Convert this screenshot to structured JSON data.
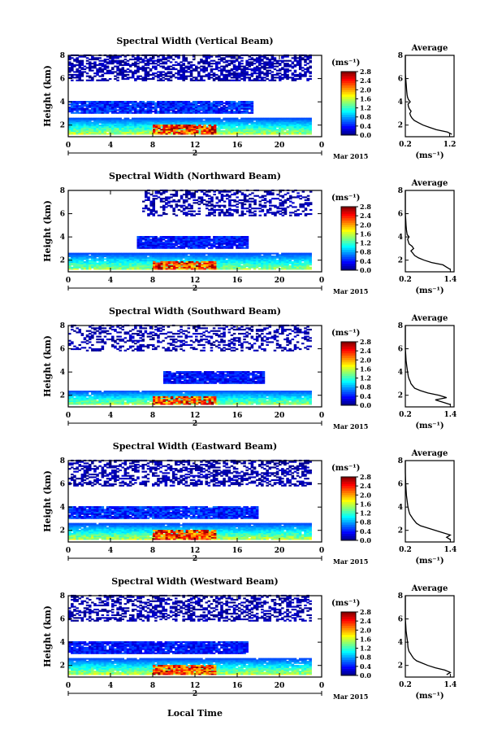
{
  "chart_data": [
    {
      "type": "heatmap",
      "title": "Spectral Width (Vertical Beam)",
      "ylabel": "Height (km)",
      "ylim": [
        1,
        8
      ],
      "yticks": [
        "2",
        "4",
        "6",
        "8"
      ],
      "xlim": [
        0,
        24
      ],
      "xticks": [
        "0",
        "4",
        "8",
        "12",
        "16",
        "20",
        "0"
      ],
      "day_label": "2",
      "date_label": "Mar 2015",
      "colorbar": {
        "unit": "(ms⁻¹)",
        "min": 0,
        "max": 2.8,
        "ticks": [
          "0.0",
          "0.4",
          "0.8",
          "1.2",
          "1.6",
          "2.0",
          "2.4",
          "2.8"
        ]
      },
      "average": {
        "title": "Average",
        "xlabel": "(ms⁻¹)",
        "xticks": [
          "0.2",
          "1.2"
        ],
        "xlim": [
          0.2,
          1.3
        ],
        "ylim": [
          1,
          8
        ],
        "yticks": [
          "2",
          "4",
          "6",
          "8"
        ],
        "profile": [
          [
            1.2,
            1.25
          ],
          [
            1.4,
            1.15
          ],
          [
            1.6,
            0.9
          ],
          [
            1.8,
            0.75
          ],
          [
            2.0,
            0.6
          ],
          [
            2.2,
            0.5
          ],
          [
            2.4,
            0.4
          ],
          [
            2.6,
            0.35
          ],
          [
            2.8,
            0.32
          ],
          [
            3.0,
            0.3
          ],
          [
            3.2,
            0.33
          ],
          [
            3.4,
            0.29
          ],
          [
            3.6,
            0.27
          ],
          [
            3.8,
            0.26
          ],
          [
            4.0,
            0.31
          ],
          [
            4.2,
            0.27
          ],
          [
            4.4,
            0.25
          ],
          [
            4.6,
            0.24
          ],
          [
            5.0,
            0.23
          ],
          [
            5.5,
            0.22
          ],
          [
            6.0,
            0.21
          ],
          [
            6.5,
            0.2
          ],
          [
            7.0,
            0.2
          ],
          [
            7.5,
            0.2
          ],
          [
            8.0,
            0.2
          ]
        ]
      },
      "layers": [
        {
          "name": "upper sparse",
          "t0": 0,
          "t1": 23,
          "h0": 5.8,
          "h1": 8,
          "v0": 0.0,
          "v1": 0.25,
          "density": 0.55
        },
        {
          "name": "middle layer",
          "t0": 0,
          "t1": 17.5,
          "h0": 3.0,
          "h1": 4.0,
          "v0": 0.2,
          "v1": 0.7,
          "density": 0.95
        },
        {
          "name": "lower layer",
          "t0": 0,
          "t1": 23,
          "h0": 1.2,
          "h1": 2.6,
          "v0": 0.5,
          "v1": 1.8,
          "density": 0.97
        },
        {
          "name": "peak",
          "t0": 8,
          "t1": 14,
          "h0": 1.2,
          "h1": 2.0,
          "v0": 1.8,
          "v1": 2.8,
          "density": 0.9
        }
      ]
    },
    {
      "type": "heatmap",
      "title": "Spectral Width (Northward Beam)",
      "ylabel": "Height (km)",
      "ylim": [
        1,
        8
      ],
      "yticks": [
        "2",
        "4",
        "6",
        "8"
      ],
      "xlim": [
        0,
        24
      ],
      "xticks": [
        "0",
        "4",
        "8",
        "12",
        "16",
        "20",
        "0"
      ],
      "day_label": "2",
      "date_label": "Mar 2015",
      "colorbar": {
        "unit": "(ms⁻¹)",
        "min": 0,
        "max": 2.8,
        "ticks": [
          "0.0",
          "0.4",
          "0.8",
          "1.2",
          "1.6",
          "2.0",
          "2.4",
          "2.8"
        ]
      },
      "average": {
        "title": "Average",
        "xlabel": "(ms⁻¹)",
        "xticks": [
          "0.2",
          "1.4"
        ],
        "xlim": [
          0.2,
          1.5
        ],
        "ylim": [
          1,
          8
        ],
        "yticks": [
          "2",
          "4",
          "6",
          "8"
        ],
        "profile": [
          [
            1.2,
            1.4
          ],
          [
            1.4,
            1.3
          ],
          [
            1.6,
            1.2
          ],
          [
            1.8,
            0.9
          ],
          [
            2.0,
            0.7
          ],
          [
            2.2,
            0.55
          ],
          [
            2.4,
            0.45
          ],
          [
            2.6,
            0.4
          ],
          [
            2.8,
            0.35
          ],
          [
            3.0,
            0.42
          ],
          [
            3.2,
            0.38
          ],
          [
            3.4,
            0.3
          ],
          [
            3.6,
            0.28
          ],
          [
            3.8,
            0.26
          ],
          [
            4.0,
            0.3
          ],
          [
            4.2,
            0.25
          ],
          [
            4.6,
            0.23
          ],
          [
            5.0,
            0.22
          ],
          [
            5.5,
            0.21
          ],
          [
            6.0,
            0.2
          ],
          [
            7.0,
            0.2
          ],
          [
            8.0,
            0.2
          ]
        ]
      },
      "layers": [
        {
          "name": "upper sparse",
          "t0": 7,
          "t1": 23,
          "h0": 5.8,
          "h1": 8,
          "v0": 0.0,
          "v1": 0.25,
          "density": 0.4
        },
        {
          "name": "middle layer",
          "t0": 6.5,
          "t1": 17,
          "h0": 3.0,
          "h1": 4.0,
          "v0": 0.2,
          "v1": 0.6,
          "density": 0.95
        },
        {
          "name": "lower layer",
          "t0": 0,
          "t1": 23,
          "h0": 1.2,
          "h1": 2.6,
          "v0": 0.5,
          "v1": 1.7,
          "density": 0.97
        },
        {
          "name": "peak",
          "t0": 8,
          "t1": 14,
          "h0": 1.2,
          "h1": 1.9,
          "v0": 1.8,
          "v1": 2.8,
          "density": 0.85
        }
      ]
    },
    {
      "type": "heatmap",
      "title": "Spectral Width (Southward Beam)",
      "ylabel": "Height (km)",
      "ylim": [
        1,
        8
      ],
      "yticks": [
        "2",
        "4",
        "6",
        "8"
      ],
      "xlim": [
        0,
        24
      ],
      "xticks": [
        "0",
        "4",
        "8",
        "12",
        "16",
        "20",
        "0"
      ],
      "day_label": "2",
      "date_label": "Mar 2015",
      "colorbar": {
        "unit": "(ms⁻¹)",
        "min": 0,
        "max": 2.8,
        "ticks": [
          "0.0",
          "0.4",
          "0.8",
          "1.2",
          "1.6",
          "2.0",
          "2.4",
          "2.8"
        ]
      },
      "average": {
        "title": "Average",
        "xlabel": "(ms⁻¹)",
        "xticks": [
          "0.2",
          "1.4"
        ],
        "xlim": [
          0.2,
          1.5
        ],
        "ylim": [
          1,
          8
        ],
        "yticks": [
          "2",
          "4",
          "6",
          "8"
        ],
        "profile": [
          [
            1.2,
            1.4
          ],
          [
            1.4,
            1.2
          ],
          [
            1.6,
            1.0
          ],
          [
            1.8,
            1.3
          ],
          [
            2.0,
            1.1
          ],
          [
            2.2,
            0.8
          ],
          [
            2.4,
            0.6
          ],
          [
            2.6,
            0.45
          ],
          [
            2.8,
            0.4
          ],
          [
            3.0,
            0.35
          ],
          [
            3.2,
            0.33
          ],
          [
            3.4,
            0.3
          ],
          [
            3.6,
            0.28
          ],
          [
            4.0,
            0.26
          ],
          [
            4.5,
            0.24
          ],
          [
            5.0,
            0.22
          ],
          [
            5.5,
            0.21
          ],
          [
            6.0,
            0.2
          ],
          [
            7.0,
            0.2
          ],
          [
            8.0,
            0.2
          ]
        ]
      },
      "layers": [
        {
          "name": "upper sparse",
          "t0": 0,
          "t1": 23,
          "h0": 5.8,
          "h1": 8,
          "v0": 0.0,
          "v1": 0.25,
          "density": 0.35
        },
        {
          "name": "middle layer",
          "t0": 9,
          "t1": 18.5,
          "h0": 3.0,
          "h1": 4.0,
          "v0": 0.2,
          "v1": 0.6,
          "density": 0.95
        },
        {
          "name": "lower layer",
          "t0": 0,
          "t1": 23,
          "h0": 1.2,
          "h1": 2.4,
          "v0": 0.5,
          "v1": 1.7,
          "density": 0.97
        },
        {
          "name": "peak",
          "t0": 8,
          "t1": 14,
          "h0": 1.2,
          "h1": 1.9,
          "v0": 1.8,
          "v1": 2.8,
          "density": 0.85
        }
      ]
    },
    {
      "type": "heatmap",
      "title": "Spectral Width (Eastward Beam)",
      "ylabel": "Height (km)",
      "ylim": [
        1,
        8
      ],
      "yticks": [
        "2",
        "4",
        "6",
        "8"
      ],
      "xlim": [
        0,
        24
      ],
      "xticks": [
        "0",
        "4",
        "8",
        "12",
        "16",
        "20",
        "0"
      ],
      "day_label": "2",
      "date_label": "Mar 2015",
      "colorbar": {
        "unit": "(ms⁻¹)",
        "min": 0,
        "max": 2.8,
        "ticks": [
          "0.0",
          "0.4",
          "0.8",
          "1.2",
          "1.6",
          "2.0",
          "2.4",
          "2.8"
        ]
      },
      "average": {
        "title": "Average",
        "xlabel": "(ms⁻¹)",
        "xticks": [
          "0.2",
          "1.4"
        ],
        "xlim": [
          0.2,
          1.5
        ],
        "ylim": [
          1,
          8
        ],
        "yticks": [
          "2",
          "4",
          "6",
          "8"
        ],
        "profile": [
          [
            1.2,
            1.4
          ],
          [
            1.4,
            1.3
          ],
          [
            1.6,
            1.4
          ],
          [
            1.8,
            1.2
          ],
          [
            2.0,
            1.0
          ],
          [
            2.2,
            0.8
          ],
          [
            2.4,
            0.6
          ],
          [
            2.6,
            0.5
          ],
          [
            2.8,
            0.45
          ],
          [
            3.0,
            0.4
          ],
          [
            3.2,
            0.36
          ],
          [
            3.4,
            0.32
          ],
          [
            3.6,
            0.3
          ],
          [
            4.0,
            0.27
          ],
          [
            4.5,
            0.25
          ],
          [
            5.0,
            0.23
          ],
          [
            5.5,
            0.22
          ],
          [
            6.0,
            0.21
          ],
          [
            7.0,
            0.2
          ],
          [
            8.0,
            0.2
          ]
        ]
      },
      "layers": [
        {
          "name": "upper sparse",
          "t0": 0,
          "t1": 23,
          "h0": 5.8,
          "h1": 8,
          "v0": 0.0,
          "v1": 0.25,
          "density": 0.5
        },
        {
          "name": "middle layer",
          "t0": 0,
          "t1": 18,
          "h0": 3.0,
          "h1": 4.0,
          "v0": 0.2,
          "v1": 0.7,
          "density": 0.95
        },
        {
          "name": "lower layer",
          "t0": 0,
          "t1": 23,
          "h0": 1.2,
          "h1": 2.6,
          "v0": 0.5,
          "v1": 1.8,
          "density": 0.97
        },
        {
          "name": "peak",
          "t0": 8,
          "t1": 14,
          "h0": 1.2,
          "h1": 2.0,
          "v0": 1.8,
          "v1": 2.8,
          "density": 0.9
        }
      ]
    },
    {
      "type": "heatmap",
      "title": "Spectral Width (Westward Beam)",
      "ylabel": "Height (km)",
      "ylim": [
        1,
        8
      ],
      "yticks": [
        "2",
        "4",
        "6",
        "8"
      ],
      "xlim": [
        0,
        24
      ],
      "xticks": [
        "0",
        "4",
        "8",
        "12",
        "16",
        "20",
        "0"
      ],
      "day_label": "2",
      "date_label": "Mar 2015",
      "colorbar": {
        "unit": "(ms⁻¹)",
        "min": 0,
        "max": 2.8,
        "ticks": [
          "0.0",
          "0.4",
          "0.8",
          "1.2",
          "1.6",
          "2.0",
          "2.4",
          "2.8"
        ]
      },
      "average": {
        "title": "Average",
        "xlabel": "(ms⁻¹)",
        "xticks": [
          "0.2",
          "1.4"
        ],
        "xlim": [
          0.2,
          1.5
        ],
        "ylim": [
          1,
          8
        ],
        "yticks": [
          "2",
          "4",
          "6",
          "8"
        ],
        "profile": [
          [
            1.2,
            1.3
          ],
          [
            1.4,
            1.4
          ],
          [
            1.6,
            1.25
          ],
          [
            1.8,
            1.0
          ],
          [
            2.0,
            0.8
          ],
          [
            2.2,
            0.65
          ],
          [
            2.4,
            0.5
          ],
          [
            2.6,
            0.42
          ],
          [
            2.8,
            0.38
          ],
          [
            3.0,
            0.34
          ],
          [
            3.2,
            0.3
          ],
          [
            3.4,
            0.28
          ],
          [
            3.6,
            0.27
          ],
          [
            4.0,
            0.26
          ],
          [
            4.5,
            0.24
          ],
          [
            5.0,
            0.22
          ],
          [
            5.5,
            0.21
          ],
          [
            6.0,
            0.2
          ],
          [
            7.0,
            0.2
          ],
          [
            8.0,
            0.2
          ]
        ]
      },
      "layers": [
        {
          "name": "upper sparse",
          "t0": 0,
          "t1": 23,
          "h0": 5.8,
          "h1": 8,
          "v0": 0.0,
          "v1": 0.25,
          "density": 0.45
        },
        {
          "name": "middle layer",
          "t0": 0,
          "t1": 17,
          "h0": 3.0,
          "h1": 4.0,
          "v0": 0.2,
          "v1": 0.6,
          "density": 0.95
        },
        {
          "name": "lower layer",
          "t0": 0,
          "t1": 23,
          "h0": 1.2,
          "h1": 2.6,
          "v0": 0.5,
          "v1": 1.8,
          "density": 0.97
        },
        {
          "name": "peak",
          "t0": 8,
          "t1": 14,
          "h0": 1.2,
          "h1": 2.0,
          "v0": 1.8,
          "v1": 2.8,
          "density": 0.9
        }
      ]
    }
  ],
  "footer": {
    "xlabel": "Local Time"
  }
}
